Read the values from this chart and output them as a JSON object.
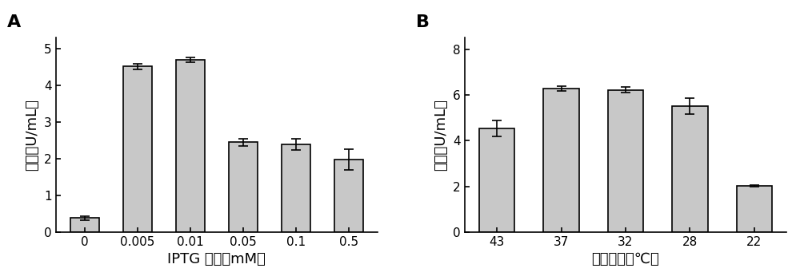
{
  "panel_A": {
    "label": "A",
    "categories": [
      "0",
      "0.005",
      "0.01",
      "0.05",
      "0.1",
      "0.5"
    ],
    "values": [
      0.38,
      4.52,
      4.7,
      2.45,
      2.4,
      1.98
    ],
    "errors": [
      0.05,
      0.08,
      0.07,
      0.1,
      0.15,
      0.28
    ],
    "xlabel": "IPTG 浓度（mM）",
    "ylabel": "酶活（U/mL）",
    "ylim": [
      0,
      5.3
    ],
    "yticks": [
      0,
      1,
      2,
      3,
      4,
      5
    ],
    "bar_color": "#c8c8c8",
    "bar_edgecolor": "#000000"
  },
  "panel_B": {
    "label": "B",
    "categories": [
      "43",
      "37",
      "32",
      "28",
      "22"
    ],
    "values": [
      4.52,
      6.28,
      6.22,
      5.52,
      2.02
    ],
    "errors": [
      0.35,
      0.12,
      0.12,
      0.35,
      0.05
    ],
    "xlabel": "培养温度（℃）",
    "ylabel": "酶活（U/mL）",
    "ylim": [
      0,
      8.5
    ],
    "yticks": [
      0,
      2,
      4,
      6,
      8
    ],
    "bar_color": "#c8c8c8",
    "bar_edgecolor": "#000000"
  },
  "figure_bg": "#ffffff",
  "bar_width": 0.55,
  "capsize": 4,
  "fontsize_label": 13,
  "fontsize_tick": 11,
  "fontsize_panel": 16
}
